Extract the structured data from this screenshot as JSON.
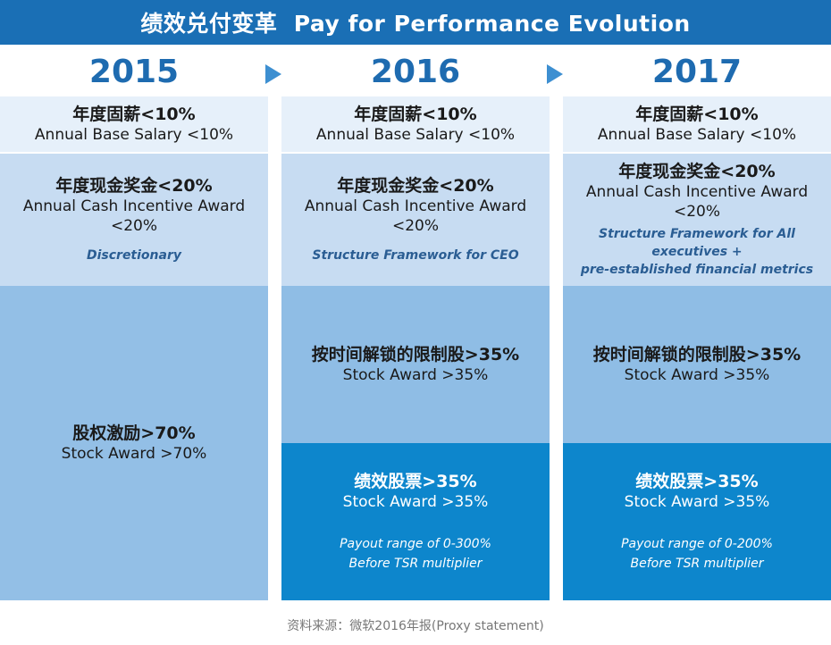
{
  "title": "绩效兑付变革  Pay for Performance Evolution",
  "years": [
    "2015",
    "2016",
    "2017"
  ],
  "base_salary": {
    "zh": "年度固薪<10%",
    "en": "Annual Base Salary <10%"
  },
  "cash_incentive": {
    "zh": "年度现金奖金<20%",
    "en_line1": "Annual Cash Incentive Award",
    "en_line2": "<20%"
  },
  "cash_notes": {
    "y2015": "Discretionary",
    "y2016": "Structure Framework for CEO",
    "y2017_line1": "Structure Framework for All",
    "y2017_line2": "executives +",
    "y2017_line3": "pre-established financial metrics"
  },
  "stock_2015": {
    "zh": "股权激励>70%",
    "en": "Stock Award >70%"
  },
  "time_vested": {
    "zh": "按时间解锁的限制股>35%",
    "en": "Stock Award >35%"
  },
  "performance": {
    "zh": "绩效股票>35%",
    "en": "Stock Award >35%"
  },
  "payout": {
    "y2016_line1": "Payout range of 0-300%",
    "y2017_line1": "Payout range of 0-200%",
    "line2": "Before TSR multiplier"
  },
  "footer": "资料来源：微软2016年报(Proxy  statement)",
  "colors": {
    "title_bar": "#1a6fb5",
    "year_text": "#1e6bb0",
    "base_row": "#e6f0fa",
    "cash_row": "#c7dcf2",
    "stock_row": "#93bfe6",
    "performance_row": "#0d86cc"
  }
}
